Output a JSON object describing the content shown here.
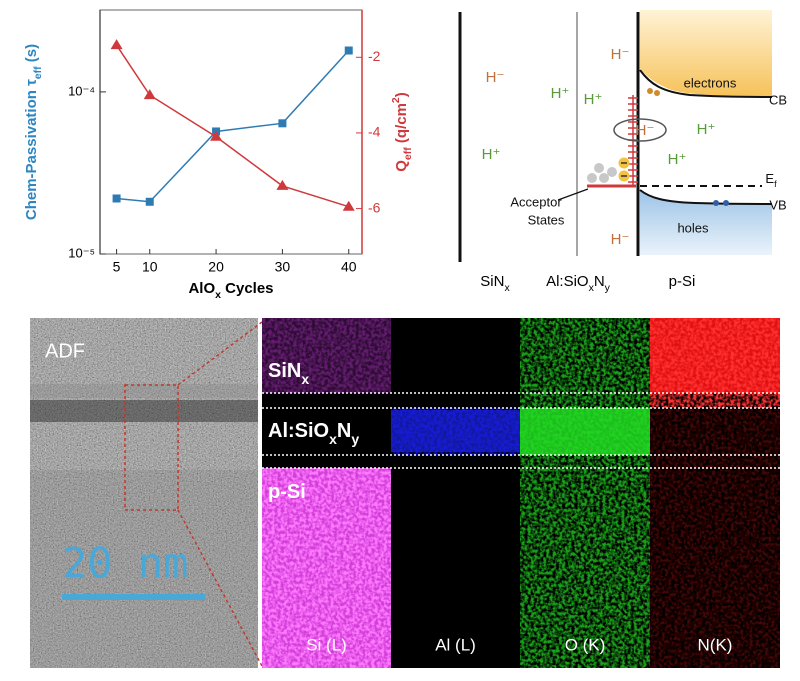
{
  "chart_data": {
    "type": "line",
    "x": [
      5,
      10,
      20,
      30,
      40
    ],
    "xlim": [
      2.5,
      42
    ],
    "xticks": [
      5,
      10,
      20,
      30,
      40
    ],
    "xlabel": [
      {
        "t": "AlO"
      },
      {
        "t": "x",
        "sub": true
      },
      {
        "t": " Cycles"
      }
    ],
    "ylabel": [
      {
        "t": "Chem-Passivation τ"
      },
      {
        "t": "eff",
        "sub": true
      },
      {
        "t": " (s)"
      }
    ],
    "y2label": [
      {
        "t": "Q"
      },
      {
        "t": "eff",
        "sub": true
      },
      {
        "t": " (q/cm"
      },
      {
        "t": "2",
        "sup": true
      },
      {
        "t": ")"
      }
    ],
    "ylog": true,
    "ylim": [
      1e-05,
      0.00032
    ],
    "yticks": [
      {
        "value": 1e-05,
        "label": "10⁻⁵"
      },
      {
        "value": 0.0001,
        "label": "10⁻⁴"
      }
    ],
    "y2lim": [
      -7.2,
      -0.75
    ],
    "y2ticks": [
      -2,
      -4,
      -6
    ],
    "ycolor": "#2e86c1",
    "y2color": "#d0393c",
    "series": [
      {
        "color": "#2e7bb4",
        "marker": "square",
        "values": [
          2.2e-05,
          2.1e-05,
          5.7e-05,
          6.4e-05,
          0.00018
        ]
      },
      {
        "color": "#d0393c",
        "marker": "triangle",
        "axis": "y2",
        "values": [
          -1.68,
          -3.0,
          -4.1,
          -5.4,
          -5.95
        ]
      }
    ]
  },
  "band_diagram": {
    "labels": [
      {
        "text": "H⁻",
        "color": "#c0703a"
      },
      {
        "text": "H⁺",
        "color": "#5a9a3a"
      },
      {
        "text": "H⁺",
        "color": "#5a9a3a"
      },
      {
        "text": "H⁻",
        "color": "#c0703a"
      },
      {
        "text": "H⁻",
        "color": "#c0703a"
      },
      {
        "text": "H⁺",
        "color": "#5a9a3a"
      },
      {
        "text": "H⁺",
        "color": "#5a9a3a"
      },
      {
        "text": "H⁺",
        "color": "#5a9a3a"
      },
      {
        "text": "H⁻",
        "color": "#c0703a"
      },
      {
        "text": "electrons",
        "color": "#111111"
      },
      {
        "text": "CB",
        "color": "#111111"
      },
      {
        "text": [
          {
            "t": "E"
          },
          {
            "t": "f",
            "sub": true
          }
        ],
        "color": "#111111"
      },
      {
        "text": "VB",
        "color": "#111111"
      },
      {
        "text": "holes",
        "color": "#111111"
      },
      {
        "text": "Acceptor",
        "color": "#111111"
      },
      {
        "text": "States",
        "color": "#111111"
      }
    ],
    "layers": [
      [
        {
          "t": "SiN"
        },
        {
          "t": "x",
          "sub": true
        }
      ],
      [
        {
          "t": "Al:SiO"
        },
        {
          "t": "x",
          "sub": true
        },
        {
          "t": "N"
        },
        {
          "t": "y",
          "sub": true
        }
      ],
      [
        {
          "t": "p-Si"
        }
      ]
    ]
  },
  "micrograph": {
    "adf_label": "ADF",
    "scale_bar": "20 nm",
    "layers": [
      [
        {
          "t": "SiN"
        },
        {
          "t": "x",
          "sub": true
        }
      ],
      [
        {
          "t": "Al:SiO"
        },
        {
          "t": "x",
          "sub": true
        },
        {
          "t": "N"
        },
        {
          "t": "y",
          "sub": true
        }
      ],
      [
        {
          "t": "p-Si"
        }
      ]
    ],
    "maps": [
      "Si (L)",
      "Al (L)",
      "O (K)",
      "N(K)"
    ]
  }
}
